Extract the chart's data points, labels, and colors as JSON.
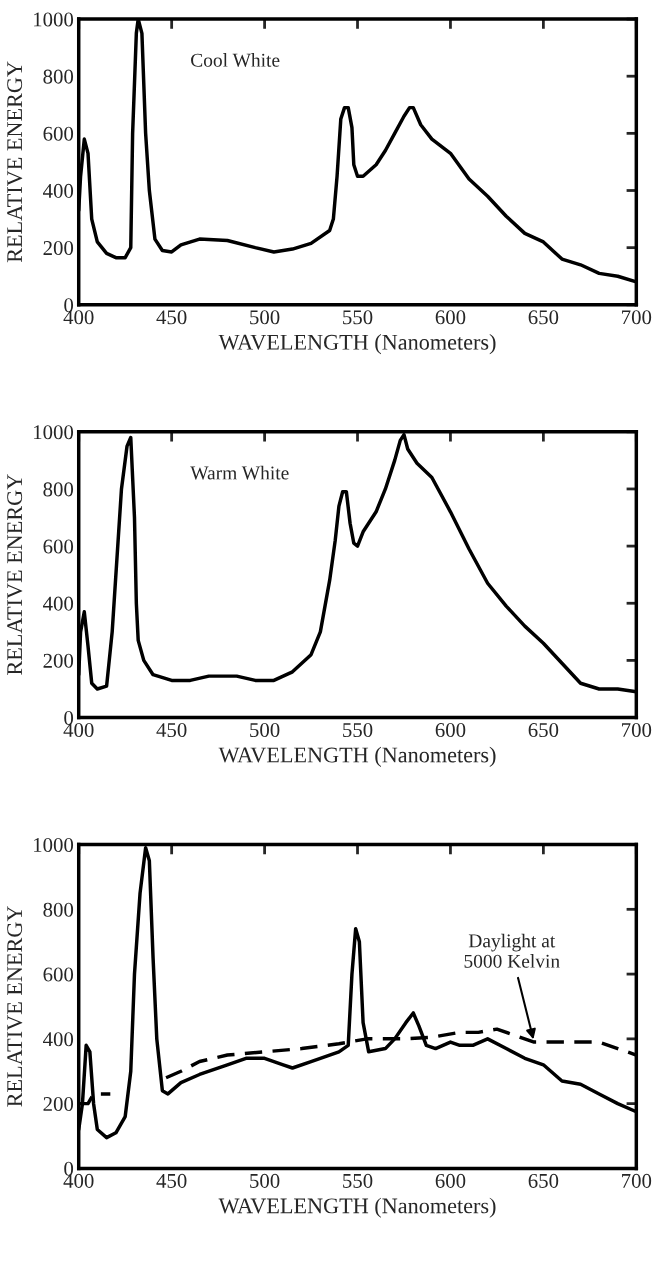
{
  "chart_data": [
    {
      "type": "line",
      "xlabel": "WAVELENGTH (Nanometers)",
      "ylabel": "RELATIVE ENERGY",
      "xlim": [
        400,
        700
      ],
      "ylim": [
        0,
        1000
      ],
      "xticks": [
        400,
        450,
        500,
        550,
        600,
        650,
        700
      ],
      "yticks": [
        0,
        200,
        400,
        600,
        800,
        1000
      ],
      "grid": false,
      "series": [
        {
          "name": "Cool White",
          "color": "#000000",
          "line_style": "solid",
          "x": [
            400,
            401,
            403,
            405,
            407,
            410,
            415,
            420,
            425,
            428,
            429,
            431,
            432,
            434,
            436,
            438,
            441,
            445,
            450,
            455,
            465,
            480,
            495,
            505,
            515,
            525,
            535,
            537,
            539,
            541,
            543,
            545,
            547,
            548,
            550,
            553,
            560,
            565,
            570,
            575,
            578,
            580,
            584,
            590,
            600,
            610,
            620,
            630,
            640,
            650,
            660,
            670,
            680,
            690,
            700
          ],
          "values": [
            330,
            450,
            580,
            530,
            300,
            220,
            180,
            165,
            165,
            200,
            600,
            950,
            1000,
            950,
            600,
            400,
            230,
            190,
            185,
            210,
            230,
            225,
            200,
            185,
            195,
            215,
            260,
            300,
            450,
            650,
            690,
            690,
            620,
            490,
            450,
            450,
            490,
            540,
            600,
            660,
            690,
            690,
            630,
            580,
            530,
            440,
            380,
            310,
            250,
            220,
            160,
            140,
            110,
            100,
            80
          ]
        }
      ]
    },
    {
      "type": "line",
      "xlabel": "WAVELENGTH (Nanometers)",
      "ylabel": "RELATIVE ENERGY",
      "xlim": [
        400,
        700
      ],
      "ylim": [
        0,
        1000
      ],
      "xticks": [
        400,
        450,
        500,
        550,
        600,
        650,
        700
      ],
      "yticks": [
        0,
        200,
        400,
        600,
        800,
        1000
      ],
      "grid": false,
      "series": [
        {
          "name": "Warm White",
          "color": "#000000",
          "line_style": "solid",
          "x": [
            400,
            401,
            403,
            405,
            407,
            410,
            415,
            418,
            420,
            423,
            426,
            428,
            430,
            431,
            432,
            435,
            440,
            450,
            460,
            470,
            485,
            495,
            505,
            515,
            525,
            530,
            535,
            538,
            540,
            542,
            544,
            546,
            548,
            550,
            553,
            560,
            565,
            570,
            573,
            575,
            577,
            582,
            590,
            600,
            610,
            620,
            630,
            640,
            650,
            660,
            670,
            680,
            690,
            700
          ],
          "values": [
            150,
            300,
            370,
            250,
            120,
            100,
            110,
            300,
            500,
            800,
            950,
            980,
            700,
            400,
            270,
            200,
            150,
            130,
            130,
            145,
            145,
            130,
            130,
            160,
            220,
            300,
            480,
            620,
            740,
            790,
            790,
            680,
            610,
            600,
            650,
            720,
            800,
            900,
            970,
            990,
            940,
            890,
            840,
            720,
            590,
            470,
            390,
            320,
            260,
            190,
            120,
            100,
            100,
            90
          ]
        }
      ]
    },
    {
      "type": "line",
      "xlabel": "WAVELENGTH (Nanometers)",
      "ylabel": "RELATIVE ENERGY",
      "xlim": [
        400,
        700
      ],
      "ylim": [
        0,
        1000
      ],
      "xticks": [
        400,
        450,
        500,
        550,
        600,
        650,
        700
      ],
      "yticks": [
        0,
        200,
        400,
        600,
        800,
        1000
      ],
      "grid": false,
      "annotations": [
        {
          "text": "Daylight at\n5000 Kelvin",
          "x": 645,
          "y": 390
        }
      ],
      "series": [
        {
          "color": "#000000",
          "line_style": "solid",
          "x": [
            400,
            402,
            404,
            406,
            408,
            410,
            415,
            420,
            425,
            428,
            430,
            433,
            436,
            438,
            440,
            442,
            445,
            448,
            455,
            465,
            480,
            490,
            500,
            510,
            515,
            525,
            540,
            545,
            547,
            549,
            551,
            553,
            556,
            565,
            570,
            576,
            580,
            583,
            587,
            592,
            600,
            605,
            612,
            620,
            630,
            640,
            650,
            660,
            670,
            680,
            690,
            700
          ],
          "values": [
            120,
            200,
            380,
            360,
            200,
            120,
            95,
            110,
            160,
            300,
            600,
            850,
            990,
            950,
            650,
            400,
            240,
            230,
            265,
            290,
            320,
            340,
            340,
            320,
            310,
            330,
            360,
            380,
            600,
            740,
            700,
            450,
            360,
            370,
            400,
            450,
            480,
            440,
            380,
            370,
            390,
            380,
            380,
            400,
            370,
            340,
            320,
            270,
            260,
            230,
            200,
            175
          ]
        },
        {
          "color": "#000000",
          "line_style": "dashed",
          "x": [
            400,
            405,
            408,
            417,
            430,
            447,
            455,
            465,
            480,
            500,
            520,
            540,
            545,
            555,
            565,
            575,
            590,
            605,
            615,
            625,
            635,
            645,
            660,
            680,
            690,
            700
          ],
          "values": [
            200,
            200,
            230,
            230,
            null,
            280,
            300,
            330,
            350,
            360,
            370,
            385,
            390,
            400,
            400,
            400,
            405,
            420,
            420,
            430,
            410,
            390,
            390,
            390,
            370,
            350
          ]
        }
      ]
    }
  ]
}
